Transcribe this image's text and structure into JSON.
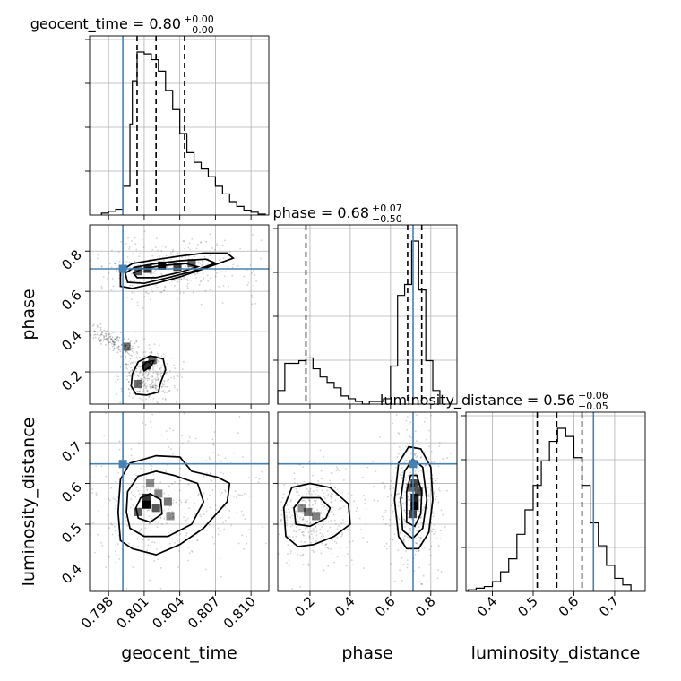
{
  "chart_data": {
    "type": "corner",
    "parameters": [
      {
        "name": "geocent_time",
        "label": "geocent_time",
        "title": "geocent_time = 0.80",
        "title_sup": "+0.00",
        "title_sub": "−0.00",
        "range": [
          0.7964,
          0.8115
        ],
        "ticks": [
          0.798,
          0.801,
          0.804,
          0.807,
          0.81
        ],
        "tick_labels": [
          "0.798",
          "0.801",
          "0.804",
          "0.807",
          "0.810"
        ],
        "truth": 0.7992,
        "quantiles": [
          0.8004,
          0.802,
          0.8044
        ]
      },
      {
        "name": "phase",
        "label": "phase",
        "title": "phase = 0.68",
        "title_sup": "+0.07",
        "title_sub": "−0.50",
        "range": [
          0.04,
          0.93
        ],
        "ticks": [
          0.2,
          0.4,
          0.6,
          0.8
        ],
        "tick_labels": [
          "0.2",
          "0.4",
          "0.6",
          "0.8"
        ],
        "truth": 0.712,
        "quantiles": [
          0.18,
          0.685,
          0.755
        ]
      },
      {
        "name": "luminosity_distance",
        "label": "luminosity_distance",
        "title": "luminosity_distance = 0.56",
        "title_sup": "+0.06",
        "title_sub": "−0.05",
        "range": [
          0.335,
          0.775
        ],
        "ticks": [
          0.4,
          0.5,
          0.6,
          0.7
        ],
        "tick_labels": [
          "0.4",
          "0.5",
          "0.6",
          "0.7"
        ],
        "truth": 0.648,
        "quantiles": [
          0.51,
          0.558,
          0.62
        ]
      }
    ],
    "histograms": {
      "geocent_time": {
        "edges": [
          0.7974,
          0.798,
          0.7986,
          0.7992,
          0.7998,
          0.8,
          0.8004,
          0.801,
          0.8016,
          0.8022,
          0.8028,
          0.8034,
          0.804,
          0.8046,
          0.8052,
          0.8058,
          0.8064,
          0.807,
          0.8076,
          0.8082,
          0.8088,
          0.8094,
          0.81,
          0.8106,
          0.8112
        ],
        "counts": [
          2,
          4,
          6,
          30,
          95,
          140,
          170,
          168,
          162,
          150,
          130,
          110,
          85,
          65,
          55,
          48,
          40,
          30,
          22,
          14,
          9,
          5,
          3,
          1
        ]
      },
      "phase": {
        "edges": [
          0.04,
          0.075,
          0.11,
          0.145,
          0.18,
          0.215,
          0.25,
          0.285,
          0.32,
          0.355,
          0.39,
          0.425,
          0.46,
          0.495,
          0.53,
          0.565,
          0.6,
          0.635,
          0.67,
          0.705,
          0.74,
          0.775,
          0.81,
          0.845
        ],
        "counts": [
          5,
          15,
          15,
          16,
          17,
          13,
          10,
          8,
          6,
          3,
          2,
          1,
          0,
          1,
          1,
          2,
          14,
          40,
          44,
          60,
          42,
          16,
          5
        ]
      },
      "luminosity_distance": {
        "edges": [
          0.34,
          0.36,
          0.38,
          0.4,
          0.42,
          0.44,
          0.46,
          0.48,
          0.5,
          0.52,
          0.54,
          0.56,
          0.58,
          0.6,
          0.62,
          0.64,
          0.66,
          0.68,
          0.7,
          0.72,
          0.74
        ],
        "counts": [
          1,
          2,
          3,
          6,
          12,
          20,
          35,
          50,
          65,
          80,
          92,
          100,
          95,
          82,
          65,
          42,
          28,
          16,
          8,
          4
        ]
      }
    },
    "contours_2d": [
      {
        "x": "geocent_time",
        "y": "phase",
        "levels": [
          [
            [
              0.799,
              0.625
            ],
            [
              0.8,
              0.615
            ],
            [
              0.802,
              0.64
            ],
            [
              0.804,
              0.672
            ],
            [
              0.806,
              0.712
            ],
            [
              0.8085,
              0.765
            ],
            [
              0.808,
              0.79
            ],
            [
              0.806,
              0.79
            ],
            [
              0.804,
              0.775
            ],
            [
              0.802,
              0.758
            ],
            [
              0.8,
              0.738
            ],
            [
              0.799,
              0.7
            ]
          ],
          [
            [
              0.7996,
              0.645
            ],
            [
              0.801,
              0.64
            ],
            [
              0.803,
              0.668
            ],
            [
              0.805,
              0.698
            ],
            [
              0.807,
              0.74
            ],
            [
              0.8062,
              0.76
            ],
            [
              0.804,
              0.752
            ],
            [
              0.802,
              0.738
            ],
            [
              0.8002,
              0.72
            ],
            [
              0.7994,
              0.69
            ]
          ],
          [
            [
              0.8004,
              0.668
            ],
            [
              0.802,
              0.668
            ],
            [
              0.804,
              0.695
            ],
            [
              0.8055,
              0.722
            ],
            [
              0.8045,
              0.738
            ],
            [
              0.8025,
              0.728
            ],
            [
              0.8008,
              0.712
            ],
            [
              0.8001,
              0.69
            ]
          ],
          [
            [
              0.8003,
              0.09
            ],
            [
              0.8012,
              0.085
            ],
            [
              0.8022,
              0.1
            ],
            [
              0.8024,
              0.15
            ],
            [
              0.8028,
              0.21
            ],
            [
              0.8026,
              0.265
            ],
            [
              0.8015,
              0.28
            ],
            [
              0.8005,
              0.25
            ],
            [
              0.8,
              0.19
            ],
            [
              0.7999,
              0.13
            ]
          ],
          [
            [
              0.801,
              0.205
            ],
            [
              0.8016,
              0.23
            ],
            [
              0.8018,
              0.255
            ],
            [
              0.8012,
              0.25
            ],
            [
              0.8009,
              0.23
            ]
          ]
        ]
      },
      {
        "x": "geocent_time",
        "y": "luminosity_distance",
        "levels": [
          [
            [
              0.799,
              0.46
            ],
            [
              0.8,
              0.44
            ],
            [
              0.802,
              0.425
            ],
            [
              0.804,
              0.45
            ],
            [
              0.806,
              0.49
            ],
            [
              0.808,
              0.555
            ],
            [
              0.8082,
              0.6
            ],
            [
              0.8072,
              0.615
            ],
            [
              0.805,
              0.63
            ],
            [
              0.804,
              0.665
            ],
            [
              0.802,
              0.668
            ],
            [
              0.7998,
              0.65
            ],
            [
              0.799,
              0.61
            ],
            [
              0.7988,
              0.53
            ]
          ],
          [
            [
              0.7998,
              0.49
            ],
            [
              0.801,
              0.47
            ],
            [
              0.803,
              0.47
            ],
            [
              0.805,
              0.5
            ],
            [
              0.806,
              0.555
            ],
            [
              0.8055,
              0.6
            ],
            [
              0.8035,
              0.62
            ],
            [
              0.802,
              0.63
            ],
            [
              0.8005,
              0.618
            ],
            [
              0.7996,
              0.58
            ],
            [
              0.7995,
              0.53
            ]
          ],
          [
            [
              0.8005,
              0.515
            ],
            [
              0.8015,
              0.505
            ],
            [
              0.8025,
              0.525
            ],
            [
              0.8024,
              0.56
            ],
            [
              0.8015,
              0.575
            ],
            [
              0.8007,
              0.565
            ],
            [
              0.8003,
              0.54
            ]
          ]
        ]
      },
      {
        "x": "phase",
        "y": "luminosity_distance",
        "levels": [
          [
            [
              0.08,
              0.47
            ],
            [
              0.14,
              0.445
            ],
            [
              0.22,
              0.45
            ],
            [
              0.32,
              0.47
            ],
            [
              0.4,
              0.5
            ],
            [
              0.39,
              0.55
            ],
            [
              0.3,
              0.59
            ],
            [
              0.2,
              0.6
            ],
            [
              0.11,
              0.59
            ],
            [
              0.07,
              0.54
            ]
          ],
          [
            [
              0.13,
              0.5
            ],
            [
              0.2,
              0.495
            ],
            [
              0.28,
              0.515
            ],
            [
              0.3,
              0.54
            ],
            [
              0.25,
              0.565
            ],
            [
              0.16,
              0.565
            ],
            [
              0.12,
              0.54
            ]
          ],
          [
            [
              0.64,
              0.47
            ],
            [
              0.68,
              0.44
            ],
            [
              0.74,
              0.44
            ],
            [
              0.79,
              0.48
            ],
            [
              0.81,
              0.56
            ],
            [
              0.8,
              0.64
            ],
            [
              0.75,
              0.685
            ],
            [
              0.69,
              0.69
            ],
            [
              0.64,
              0.65
            ],
            [
              0.62,
              0.56
            ]
          ],
          [
            [
              0.66,
              0.485
            ],
            [
              0.71,
              0.465
            ],
            [
              0.76,
              0.49
            ],
            [
              0.78,
              0.56
            ],
            [
              0.76,
              0.64
            ],
            [
              0.71,
              0.66
            ],
            [
              0.67,
              0.63
            ],
            [
              0.65,
              0.56
            ]
          ],
          [
            [
              0.68,
              0.505
            ],
            [
              0.72,
              0.495
            ],
            [
              0.75,
              0.525
            ],
            [
              0.755,
              0.58
            ],
            [
              0.73,
              0.62
            ],
            [
              0.7,
              0.62
            ],
            [
              0.68,
              0.58
            ]
          ]
        ]
      }
    ],
    "density_peaks": [
      {
        "x": "geocent_time",
        "y": "phase",
        "cells": [
          [
            0.8025,
            0.728,
            1.0
          ],
          [
            0.8013,
            0.712,
            0.8
          ],
          [
            0.8038,
            0.722,
            0.7
          ],
          [
            0.805,
            0.74,
            0.55
          ],
          [
            0.8005,
            0.7,
            0.6
          ],
          [
            0.8012,
            0.232,
            0.75
          ],
          [
            0.8005,
            0.14,
            0.5
          ],
          [
            0.8017,
            0.26,
            0.55
          ],
          [
            0.7995,
            0.325,
            0.45
          ]
        ]
      },
      {
        "x": "geocent_time",
        "y": "luminosity_distance",
        "cells": [
          [
            0.8012,
            0.548,
            1.0
          ],
          [
            0.8012,
            0.565,
            0.75
          ],
          [
            0.802,
            0.54,
            0.6
          ],
          [
            0.8005,
            0.53,
            0.55
          ],
          [
            0.8022,
            0.575,
            0.4
          ],
          [
            0.803,
            0.555,
            0.45
          ],
          [
            0.8015,
            0.6,
            0.35
          ],
          [
            0.8032,
            0.52,
            0.35
          ]
        ]
      },
      {
        "x": "phase",
        "y": "luminosity_distance",
        "cells": [
          [
            0.72,
            0.545,
            1.0
          ],
          [
            0.72,
            0.565,
            0.85
          ],
          [
            0.72,
            0.6,
            0.65
          ],
          [
            0.71,
            0.525,
            0.7
          ],
          [
            0.74,
            0.58,
            0.6
          ],
          [
            0.7,
            0.59,
            0.5
          ],
          [
            0.19,
            0.53,
            0.45
          ],
          [
            0.23,
            0.52,
            0.4
          ],
          [
            0.16,
            0.54,
            0.35
          ]
        ]
      }
    ],
    "grid": true,
    "colors": {
      "truth": "#4682b4",
      "hist": "#000000",
      "density": "#000000"
    }
  }
}
